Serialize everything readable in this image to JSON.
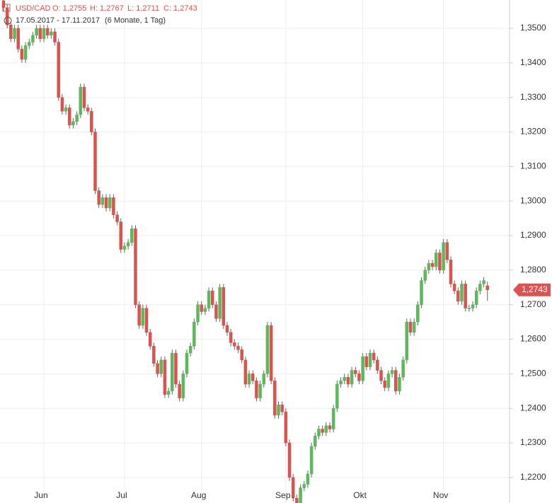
{
  "header": {
    "symbol": "USD/CAD",
    "open": "O: 1,2755",
    "high": "H: 1,2767",
    "low": "L: 1,2711",
    "close": "C: 1,2743",
    "range": "17.05.2017 - 17.11.2017",
    "period": "(6 Monate, 1 Tag)"
  },
  "chart_data": {
    "type": "candlestick",
    "up_color": "#5cb85c",
    "down_color": "#d9534f",
    "grid": true,
    "last_label": "1,2743",
    "ylim": [
      1.2126,
      1.3582
    ],
    "yticks": [
      {
        "value": 1.22,
        "label": "1,2200"
      },
      {
        "value": 1.23,
        "label": "1,2300"
      },
      {
        "value": 1.24,
        "label": "1,2400"
      },
      {
        "value": 1.25,
        "label": "1,2500"
      },
      {
        "value": 1.26,
        "label": "1,2600"
      },
      {
        "value": 1.27,
        "label": "1,2700"
      },
      {
        "value": 1.28,
        "label": "1,2800"
      },
      {
        "value": 1.29,
        "label": "1,2900"
      },
      {
        "value": 1.3,
        "label": "1,3000"
      },
      {
        "value": 1.31,
        "label": "1,3100"
      },
      {
        "value": 1.32,
        "label": "1,3200"
      },
      {
        "value": 1.33,
        "label": "1,3300"
      },
      {
        "value": 1.34,
        "label": "1,3400"
      },
      {
        "value": 1.35,
        "label": "1,3500"
      }
    ],
    "categories": [
      null,
      null,
      null,
      null,
      null,
      null,
      null,
      null,
      null,
      null,
      null,
      "Jun",
      null,
      null,
      null,
      null,
      null,
      null,
      null,
      null,
      null,
      null,
      null,
      null,
      null,
      null,
      null,
      null,
      null,
      null,
      null,
      null,
      null,
      "Jul",
      null,
      null,
      null,
      null,
      null,
      null,
      null,
      null,
      null,
      null,
      null,
      null,
      null,
      null,
      null,
      null,
      null,
      null,
      null,
      null,
      "Aug",
      null,
      null,
      null,
      null,
      null,
      null,
      null,
      null,
      null,
      null,
      null,
      null,
      null,
      null,
      null,
      null,
      null,
      null,
      null,
      null,
      null,
      null,
      "Sep",
      null,
      null,
      null,
      null,
      null,
      null,
      null,
      null,
      null,
      null,
      null,
      null,
      null,
      null,
      null,
      null,
      null,
      null,
      null,
      null,
      "Okt",
      null,
      null,
      null,
      null,
      null,
      null,
      null,
      null,
      null,
      null,
      null,
      null,
      null,
      null,
      null,
      null,
      null,
      null,
      null,
      null,
      null,
      "Nov",
      null,
      null,
      null,
      null,
      null,
      null,
      null,
      null,
      null,
      null,
      null,
      null
    ],
    "open": [
      1.358,
      1.356,
      1.351,
      1.347,
      1.35,
      1.344,
      1.341,
      1.345,
      1.346,
      1.348,
      1.35,
      1.347,
      1.35,
      1.348,
      1.349,
      1.346,
      1.33,
      1.326,
      1.327,
      1.322,
      1.323,
      1.325,
      1.333,
      1.327,
      1.326,
      1.32,
      1.303,
      1.299,
      1.301,
      1.298,
      1.301,
      1.296,
      1.294,
      1.286,
      1.287,
      1.288,
      1.292,
      1.27,
      1.264,
      1.269,
      1.262,
      1.258,
      1.253,
      1.25,
      1.254,
      1.244,
      1.245,
      1.256,
      1.247,
      1.243,
      1.25,
      1.256,
      1.258,
      1.265,
      1.27,
      1.268,
      1.269,
      1.274,
      1.27,
      1.266,
      1.275,
      1.264,
      1.262,
      1.259,
      1.258,
      1.257,
      1.254,
      1.247,
      1.25,
      1.248,
      1.243,
      1.247,
      1.25,
      1.264,
      1.248,
      1.238,
      1.241,
      1.239,
      1.23,
      1.22,
      1.214,
      1.212,
      1.217,
      1.218,
      1.221,
      1.229,
      1.232,
      1.234,
      1.233,
      1.235,
      1.234,
      1.24,
      1.247,
      1.248,
      1.249,
      1.247,
      1.251,
      1.25,
      1.248,
      1.255,
      1.252,
      1.256,
      1.254,
      1.251,
      1.248,
      1.246,
      1.25,
      1.251,
      1.245,
      1.249,
      1.254,
      1.265,
      1.262,
      1.265,
      1.27,
      1.277,
      1.28,
      1.282,
      1.281,
      1.285,
      1.28,
      1.288,
      1.283,
      1.276,
      1.274,
      1.271,
      1.276,
      1.269,
      1.269,
      1.27,
      1.274,
      1.276,
      1.2755
    ],
    "high": [
      1.359,
      1.357,
      1.352,
      1.351,
      1.351,
      1.345,
      1.346,
      1.347,
      1.349,
      1.351,
      1.351,
      1.351,
      1.351,
      1.35,
      1.35,
      1.347,
      1.331,
      1.328,
      1.328,
      1.324,
      1.326,
      1.334,
      1.334,
      1.328,
      1.327,
      1.321,
      1.304,
      1.302,
      1.302,
      1.302,
      1.302,
      1.297,
      1.295,
      1.288,
      1.289,
      1.293,
      1.293,
      1.271,
      1.27,
      1.27,
      1.263,
      1.259,
      1.254,
      1.255,
      1.255,
      1.246,
      1.257,
      1.257,
      1.248,
      1.251,
      1.257,
      1.259,
      1.266,
      1.271,
      1.271,
      1.27,
      1.275,
      1.275,
      1.271,
      1.276,
      1.276,
      1.265,
      1.263,
      1.26,
      1.259,
      1.258,
      1.255,
      1.251,
      1.251,
      1.249,
      1.248,
      1.251,
      1.265,
      1.265,
      1.249,
      1.242,
      1.242,
      1.24,
      1.231,
      1.221,
      1.215,
      1.218,
      1.219,
      1.222,
      1.23,
      1.233,
      1.235,
      1.235,
      1.236,
      1.236,
      1.241,
      1.248,
      1.249,
      1.25,
      1.25,
      1.252,
      1.252,
      1.251,
      1.256,
      1.256,
      1.257,
      1.257,
      1.255,
      1.252,
      1.249,
      1.251,
      1.252,
      1.252,
      1.25,
      1.255,
      1.266,
      1.266,
      1.266,
      1.271,
      1.278,
      1.281,
      1.283,
      1.283,
      1.286,
      1.286,
      1.289,
      1.289,
      1.284,
      1.277,
      1.275,
      1.277,
      1.277,
      1.27,
      1.271,
      1.275,
      1.277,
      1.278,
      1.2767
    ],
    "low": [
      1.355,
      1.35,
      1.346,
      1.346,
      1.343,
      1.34,
      1.34,
      1.344,
      1.345,
      1.347,
      1.346,
      1.346,
      1.347,
      1.347,
      1.345,
      1.329,
      1.325,
      1.325,
      1.321,
      1.321,
      1.322,
      1.324,
      1.326,
      1.325,
      1.319,
      1.302,
      1.298,
      1.298,
      1.297,
      1.297,
      1.295,
      1.293,
      1.285,
      1.285,
      1.286,
      1.287,
      1.269,
      1.263,
      1.263,
      1.261,
      1.257,
      1.252,
      1.249,
      1.249,
      1.243,
      1.243,
      1.244,
      1.246,
      1.242,
      1.242,
      1.249,
      1.255,
      1.257,
      1.264,
      1.267,
      1.267,
      1.268,
      1.269,
      1.265,
      1.265,
      1.263,
      1.261,
      1.258,
      1.257,
      1.256,
      1.253,
      1.246,
      1.246,
      1.247,
      1.242,
      1.242,
      1.246,
      1.249,
      1.247,
      1.237,
      1.237,
      1.238,
      1.229,
      1.219,
      1.213,
      1.211,
      1.211,
      1.216,
      1.217,
      1.22,
      1.228,
      1.231,
      1.232,
      1.232,
      1.233,
      1.233,
      1.239,
      1.246,
      1.247,
      1.246,
      1.246,
      1.249,
      1.247,
      1.247,
      1.251,
      1.251,
      1.253,
      1.25,
      1.247,
      1.245,
      1.245,
      1.249,
      1.244,
      1.244,
      1.248,
      1.253,
      1.261,
      1.261,
      1.264,
      1.269,
      1.276,
      1.279,
      1.28,
      1.28,
      1.279,
      1.279,
      1.282,
      1.275,
      1.273,
      1.27,
      1.27,
      1.268,
      1.268,
      1.268,
      1.269,
      1.273,
      1.275,
      1.2711
    ],
    "close": [
      1.356,
      1.351,
      1.347,
      1.35,
      1.344,
      1.341,
      1.345,
      1.346,
      1.348,
      1.35,
      1.347,
      1.35,
      1.348,
      1.349,
      1.346,
      1.33,
      1.326,
      1.327,
      1.322,
      1.323,
      1.325,
      1.333,
      1.327,
      1.326,
      1.32,
      1.303,
      1.299,
      1.301,
      1.298,
      1.301,
      1.296,
      1.294,
      1.286,
      1.287,
      1.288,
      1.292,
      1.27,
      1.264,
      1.269,
      1.262,
      1.258,
      1.253,
      1.25,
      1.254,
      1.244,
      1.245,
      1.256,
      1.247,
      1.243,
      1.25,
      1.256,
      1.258,
      1.265,
      1.27,
      1.268,
      1.269,
      1.274,
      1.27,
      1.266,
      1.275,
      1.264,
      1.262,
      1.259,
      1.258,
      1.257,
      1.254,
      1.247,
      1.25,
      1.248,
      1.243,
      1.247,
      1.25,
      1.264,
      1.248,
      1.238,
      1.241,
      1.239,
      1.23,
      1.22,
      1.214,
      1.212,
      1.217,
      1.218,
      1.221,
      1.229,
      1.232,
      1.234,
      1.233,
      1.235,
      1.234,
      1.24,
      1.247,
      1.248,
      1.249,
      1.247,
      1.251,
      1.25,
      1.248,
      1.255,
      1.252,
      1.256,
      1.254,
      1.251,
      1.248,
      1.246,
      1.25,
      1.251,
      1.245,
      1.249,
      1.254,
      1.265,
      1.262,
      1.265,
      1.27,
      1.277,
      1.28,
      1.282,
      1.281,
      1.285,
      1.28,
      1.288,
      1.283,
      1.276,
      1.274,
      1.271,
      1.276,
      1.269,
      1.269,
      1.27,
      1.274,
      1.276,
      1.277,
      1.2743
    ]
  }
}
